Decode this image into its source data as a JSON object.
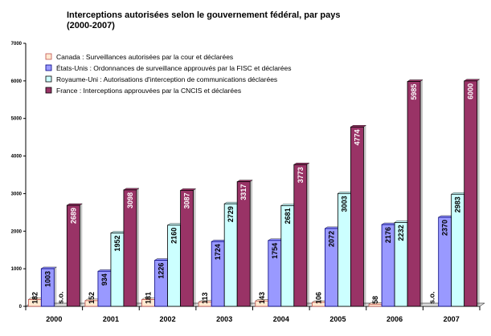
{
  "chart_data": {
    "type": "bar",
    "title": "Interceptions autorisées selon le gouvernement fédéral, par pays",
    "subtitle": "(2000-2007)",
    "categories": [
      "2000",
      "2001",
      "2002",
      "2003",
      "2004",
      "2005",
      "2006",
      "2007"
    ],
    "ylim": [
      0,
      7000
    ],
    "yticks": [
      "0",
      "1000",
      "2000",
      "3000",
      "4000",
      "5000",
      "6000",
      "7000"
    ],
    "grid": false,
    "legend_position": "top-left",
    "na_label": "s.o.",
    "series": [
      {
        "name": "Canada : Surveillances autorisées par la cour et déclarées",
        "color": "#ffe9d0",
        "border": "#c0504d",
        "values": [
          182,
          152,
          181,
          113,
          143,
          106,
          58,
          null
        ],
        "labels": [
          "182",
          "152",
          "181",
          "113",
          "143",
          "106",
          "58",
          "s.o."
        ]
      },
      {
        "name": "États-Unis : Ordonnances de surveillance approuvés par la FISC et déclarées",
        "color": "#9999ff",
        "border": "#000080",
        "values": [
          1003,
          934,
          1226,
          1724,
          1754,
          2072,
          2176,
          2370
        ],
        "labels": [
          "1003",
          "934",
          "1226",
          "1724",
          "1754",
          "2072",
          "2176",
          "2370"
        ]
      },
      {
        "name": "Royaume-Uni : Autorisations d'interception de communications déclarées",
        "color": "#ccffff",
        "border": "#000000",
        "values": [
          null,
          1952,
          2160,
          2729,
          2681,
          3003,
          2232,
          2983
        ],
        "labels": [
          "s.o.",
          "1952",
          "2160",
          "2729",
          "2681",
          "3003",
          "2232",
          "2983"
        ]
      },
      {
        "name": "France : Interceptions approuvées par la CNCIS et déclarées",
        "color": "#993366",
        "border": "#000000",
        "values": [
          2689,
          3098,
          3087,
          3317,
          3773,
          4774,
          5985,
          6000
        ],
        "labels": [
          "2689",
          "3098",
          "3087",
          "3317",
          "3773",
          "4774",
          "5985",
          "6000"
        ]
      }
    ]
  }
}
